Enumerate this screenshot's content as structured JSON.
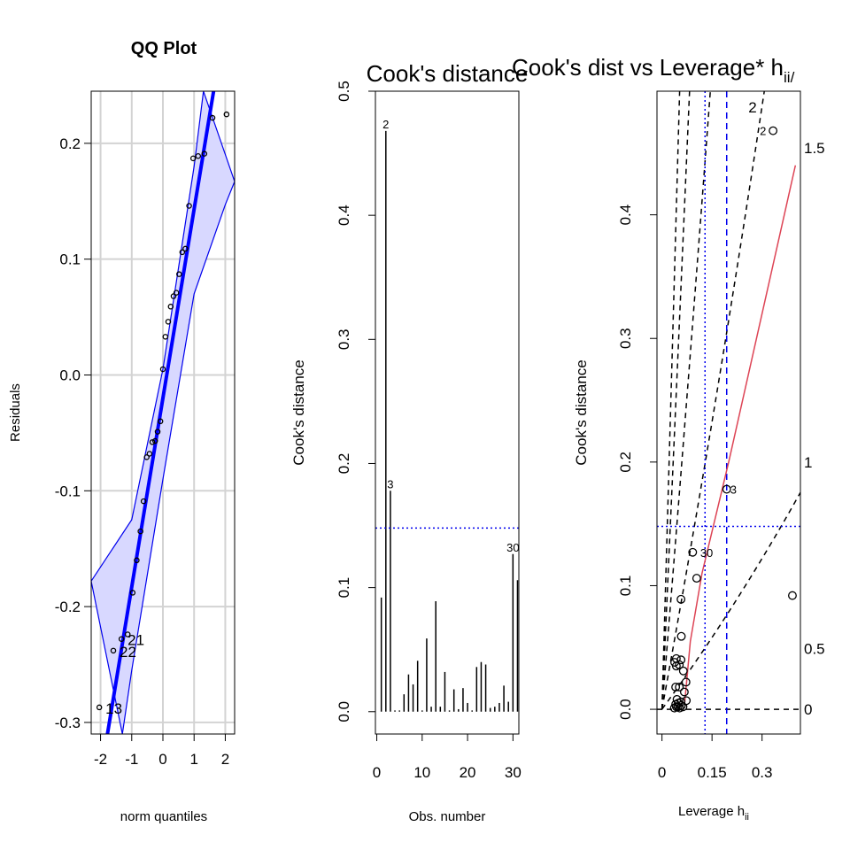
{
  "colors": {
    "band_fill": "#d8d8ff",
    "band_line": "#0000ee",
    "qq_line": "#0000ff",
    "grid": "#d3d3d3",
    "cutoff_line": "#0000ee",
    "red_line": "#dd4455",
    "black": "#000000"
  },
  "chart_data": [
    {
      "type": "scatter",
      "title": "QQ Plot",
      "xlabel": "norm quantiles",
      "ylabel": "Residuals",
      "xlim": [
        -2.3,
        2.3
      ],
      "ylim": [
        -0.31,
        0.245
      ],
      "xticks": [
        -2,
        -1,
        0,
        1,
        2
      ],
      "xtick_labels": [
        "-2",
        "-1",
        "0",
        "1",
        "2"
      ],
      "yticks": [
        -0.3,
        -0.2,
        -0.1,
        0.0,
        0.1,
        0.2
      ],
      "ytick_labels": [
        "-0.3",
        "-0.2",
        "-0.1",
        "0.0",
        "0.1",
        "0.2"
      ],
      "grid": true,
      "points": [
        {
          "x": -2.04,
          "y": -0.287,
          "label": "13"
        },
        {
          "x": -1.59,
          "y": -0.238,
          "label": "22"
        },
        {
          "x": -1.33,
          "y": -0.228,
          "label": "21"
        },
        {
          "x": -1.13,
          "y": -0.224,
          "label": ""
        },
        {
          "x": -0.97,
          "y": -0.188,
          "label": ""
        },
        {
          "x": -0.84,
          "y": -0.16,
          "label": ""
        },
        {
          "x": -0.72,
          "y": -0.135,
          "label": ""
        },
        {
          "x": -0.62,
          "y": -0.109,
          "label": ""
        },
        {
          "x": -0.52,
          "y": -0.071,
          "label": ""
        },
        {
          "x": -0.43,
          "y": -0.068,
          "label": ""
        },
        {
          "x": -0.34,
          "y": -0.058,
          "label": ""
        },
        {
          "x": -0.25,
          "y": -0.057,
          "label": ""
        },
        {
          "x": -0.17,
          "y": -0.049,
          "label": ""
        },
        {
          "x": -0.08,
          "y": -0.04,
          "label": ""
        },
        {
          "x": 0.0,
          "y": 0.005,
          "label": ""
        },
        {
          "x": 0.08,
          "y": 0.033,
          "label": ""
        },
        {
          "x": 0.17,
          "y": 0.046,
          "label": ""
        },
        {
          "x": 0.25,
          "y": 0.059,
          "label": ""
        },
        {
          "x": 0.34,
          "y": 0.068,
          "label": ""
        },
        {
          "x": 0.43,
          "y": 0.071,
          "label": ""
        },
        {
          "x": 0.52,
          "y": 0.087,
          "label": ""
        },
        {
          "x": 0.62,
          "y": 0.106,
          "label": ""
        },
        {
          "x": 0.72,
          "y": 0.109,
          "label": ""
        },
        {
          "x": 0.84,
          "y": 0.146,
          "label": ""
        },
        {
          "x": 0.97,
          "y": 0.187,
          "label": ""
        },
        {
          "x": 1.13,
          "y": 0.189,
          "label": ""
        },
        {
          "x": 1.33,
          "y": 0.191,
          "label": ""
        },
        {
          "x": 1.59,
          "y": 0.222,
          "label": ""
        },
        {
          "x": 2.04,
          "y": 0.225,
          "label": ""
        }
      ],
      "reference_line": {
        "x1": -2.3,
        "y1": -0.395,
        "x2": 2.3,
        "y2": 0.355
      },
      "envelope": {
        "upper": [
          [
            -2.3,
            -0.178
          ],
          [
            -1.0,
            -0.125
          ],
          [
            0.0,
            0.005
          ],
          [
            1.0,
            0.18
          ],
          [
            1.3,
            0.245
          ]
        ],
        "lower": [
          [
            -1.3,
            -0.31
          ],
          [
            -1.0,
            -0.255
          ],
          [
            0.0,
            -0.09
          ],
          [
            1.0,
            0.07
          ],
          [
            2.0,
            0.147
          ],
          [
            2.3,
            0.167
          ]
        ]
      }
    },
    {
      "type": "bar",
      "title": "Cook's distance",
      "xlabel": "Obs. number",
      "ylabel": "Cook's distance",
      "xlim": [
        -0.3,
        31.3
      ],
      "ylim": [
        -0.018,
        0.5
      ],
      "xticks": [
        0,
        10,
        20,
        30
      ],
      "xtick_labels": [
        "0",
        "10",
        "20",
        "30"
      ],
      "yticks": [
        0.0,
        0.1,
        0.2,
        0.3,
        0.4,
        0.5
      ],
      "ytick_labels": [
        "0.0",
        "0.1",
        "0.2",
        "0.3",
        "0.4",
        "0.5"
      ],
      "x": [
        1,
        2,
        3,
        4,
        5,
        6,
        7,
        8,
        9,
        10,
        11,
        12,
        13,
        14,
        15,
        16,
        17,
        18,
        19,
        20,
        21,
        22,
        23,
        24,
        25,
        26,
        27,
        28,
        29,
        30,
        31
      ],
      "values": [
        0.092,
        0.468,
        0.178,
        0.001,
        0.001,
        0.014,
        0.03,
        0.022,
        0.041,
        0.001,
        0.059,
        0.004,
        0.089,
        0.004,
        0.032,
        0.001,
        0.018,
        0.002,
        0.019,
        0.007,
        0.001,
        0.036,
        0.04,
        0.038,
        0.003,
        0.004,
        0.007,
        0.021,
        0.008,
        0.127,
        0.106
      ],
      "labeled_points": [
        {
          "x": 2,
          "label": "2"
        },
        {
          "x": 3,
          "label": "3"
        },
        {
          "x": 30,
          "label": "30"
        }
      ],
      "cutoff": 0.148
    },
    {
      "type": "scatter",
      "title": "Cook's dist vs Leverage* h",
      "title_subscript": "ii",
      "title_tail": "/",
      "xlabel": "Leverage  h",
      "xlabel_subscript": "ii",
      "ylabel": "Cook's distance",
      "xlim": [
        -0.015,
        0.415
      ],
      "ylim": [
        -0.02,
        0.5
      ],
      "xticks": [
        0,
        0.15,
        0.3
      ],
      "xtick_labels": [
        "0",
        "0.15",
        "0.3"
      ],
      "yticks": [
        0.0,
        0.1,
        0.2,
        0.3,
        0.4
      ],
      "ytick_labels": [
        "0.0",
        "0.1",
        "0.2",
        "0.3",
        "0.4"
      ],
      "right_axis_labels": [
        {
          "y": 0.0,
          "label": "0"
        },
        {
          "y": 0.049,
          "label": "0.5"
        },
        {
          "y": 0.2,
          "label": "1"
        },
        {
          "y": 0.454,
          "label": "1.5"
        }
      ],
      "contour_labels": [
        {
          "x": 0.259,
          "y": 0.487,
          "label": "2"
        }
      ],
      "points": [
        {
          "x": 0.037,
          "y": 0.001
        },
        {
          "x": 0.043,
          "y": 0.002
        },
        {
          "x": 0.048,
          "y": 0.002
        },
        {
          "x": 0.053,
          "y": 0.001
        },
        {
          "x": 0.058,
          "y": 0.003
        },
        {
          "x": 0.063,
          "y": 0.002
        },
        {
          "x": 0.041,
          "y": 0.004
        },
        {
          "x": 0.049,
          "y": 0.005
        },
        {
          "x": 0.057,
          "y": 0.006
        },
        {
          "x": 0.045,
          "y": 0.008
        },
        {
          "x": 0.073,
          "y": 0.007
        },
        {
          "x": 0.067,
          "y": 0.014
        },
        {
          "x": 0.041,
          "y": 0.018
        },
        {
          "x": 0.052,
          "y": 0.018
        },
        {
          "x": 0.072,
          "y": 0.022
        },
        {
          "x": 0.064,
          "y": 0.031
        },
        {
          "x": 0.043,
          "y": 0.035
        },
        {
          "x": 0.038,
          "y": 0.038
        },
        {
          "x": 0.052,
          "y": 0.036
        },
        {
          "x": 0.057,
          "y": 0.04
        },
        {
          "x": 0.043,
          "y": 0.041
        },
        {
          "x": 0.058,
          "y": 0.059
        },
        {
          "x": 0.057,
          "y": 0.089
        },
        {
          "x": 0.391,
          "y": 0.092
        },
        {
          "x": 0.104,
          "y": 0.106
        },
        {
          "x": 0.092,
          "y": 0.127
        },
        {
          "x": 0.194,
          "y": 0.178
        },
        {
          "x": 0.333,
          "y": 0.468
        }
      ],
      "point_labels": [
        {
          "x": 0.333,
          "y": 0.468,
          "label": "2"
        },
        {
          "x": 0.194,
          "y": 0.178,
          "label": "3"
        },
        {
          "x": 0.104,
          "y": 0.127,
          "label": "30"
        }
      ],
      "hline_cutoff": 0.148,
      "vline_dotted": 0.129,
      "vline_dashed": 0.194,
      "red_line": [
        [
          0.068,
          0.005
        ],
        [
          0.085,
          0.055
        ],
        [
          0.12,
          0.11
        ],
        [
          0.2,
          0.2
        ],
        [
          0.4,
          0.44
        ]
      ]
    }
  ]
}
